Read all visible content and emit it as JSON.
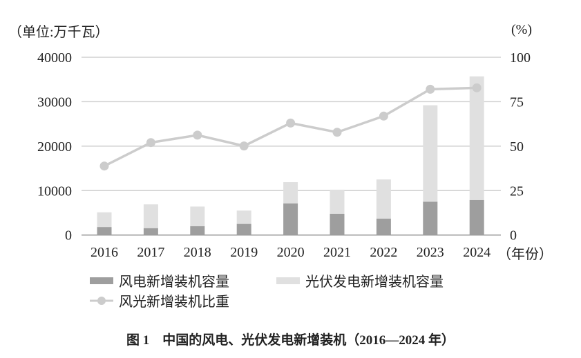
{
  "chart_data": {
    "type": "bar",
    "title": "图 1　中国的风电、光伏发电新增装机（2016—2024 年）",
    "left_axis_label": "（单位:万千瓦）",
    "right_axis_label": "(%)",
    "x_unit_label": "（年份）",
    "categories": [
      "2016",
      "2017",
      "2018",
      "2019",
      "2020",
      "2021",
      "2022",
      "2023",
      "2024"
    ],
    "ylim_left": [
      0,
      40000
    ],
    "yticks_left": [
      "0",
      "10000",
      "20000",
      "30000",
      "40000"
    ],
    "ylim_right": [
      0,
      100
    ],
    "yticks_right": [
      "0",
      "25",
      "50",
      "75",
      "100"
    ],
    "grid": true,
    "stacked": true,
    "series": [
      {
        "name": "风电新增装机容量",
        "type": "bar",
        "axis": "left",
        "color": "#9e9e9e",
        "values": [
          1800,
          1550,
          2000,
          2500,
          7100,
          4800,
          3700,
          7500,
          7900
        ]
      },
      {
        "name": "光伏发电新增装机容量",
        "type": "bar",
        "axis": "left",
        "color": "#e0e0e0",
        "values": [
          3300,
          5350,
          4400,
          3000,
          4800,
          5400,
          8800,
          21700,
          27800
        ]
      },
      {
        "name": "风光新增装机比重",
        "type": "line",
        "axis": "right",
        "color": "#cccccc",
        "values": [
          38.8,
          52.0,
          56.2,
          50.1,
          63.0,
          57.8,
          66.9,
          82.0,
          82.8
        ]
      }
    ],
    "legend_position": "bottom-left"
  }
}
